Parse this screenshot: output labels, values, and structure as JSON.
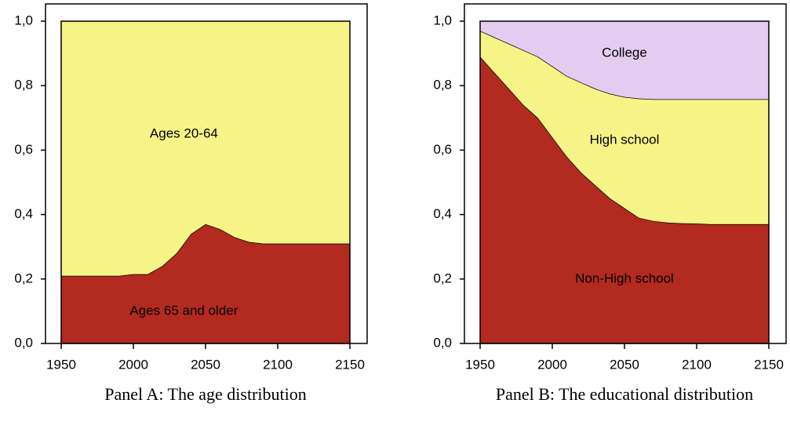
{
  "chart_data": [
    {
      "type": "stacked_area",
      "caption": "Panel A: The age distribution",
      "x": [
        1950,
        1960,
        1970,
        1980,
        1990,
        2000,
        2010,
        2020,
        2030,
        2040,
        2050,
        2060,
        2070,
        2080,
        2090,
        2100,
        2110,
        2120,
        2130,
        2140,
        2150
      ],
      "series": [
        {
          "name": "Ages 65 and older",
          "color": "#b22a20",
          "values": [
            0.21,
            0.21,
            0.21,
            0.21,
            0.21,
            0.215,
            0.215,
            0.24,
            0.28,
            0.34,
            0.37,
            0.355,
            0.33,
            0.315,
            0.31,
            0.31,
            0.31,
            0.31,
            0.31,
            0.31,
            0.31
          ]
        },
        {
          "name": "Ages 20-64",
          "color": "#f7f487",
          "values": [
            0.79,
            0.79,
            0.79,
            0.79,
            0.79,
            0.785,
            0.785,
            0.76,
            0.72,
            0.66,
            0.63,
            0.645,
            0.67,
            0.685,
            0.69,
            0.69,
            0.69,
            0.69,
            0.69,
            0.69,
            0.69
          ]
        }
      ],
      "xlim": [
        1950,
        2150
      ],
      "xticks": [
        1950,
        2000,
        2050,
        2100,
        2150
      ],
      "ylim": [
        0,
        1
      ],
      "yticks": [
        {
          "value": 0,
          "label": "0,0"
        },
        {
          "value": 0.2,
          "label": "0,2"
        },
        {
          "value": 0.4,
          "label": "0,4"
        },
        {
          "value": 0.6,
          "label": "0,6"
        },
        {
          "value": 0.8,
          "label": "0,8"
        },
        {
          "value": 1,
          "label": "1,0"
        }
      ]
    },
    {
      "type": "stacked_area",
      "caption": "Panel B: The educational distribution",
      "x": [
        1950,
        1960,
        1970,
        1980,
        1990,
        2000,
        2010,
        2020,
        2030,
        2040,
        2050,
        2060,
        2070,
        2080,
        2090,
        2100,
        2110,
        2120,
        2130,
        2140,
        2150
      ],
      "series": [
        {
          "name": "Non-High school",
          "color": "#b22a20",
          "values": [
            0.89,
            0.84,
            0.79,
            0.74,
            0.7,
            0.64,
            0.58,
            0.53,
            0.49,
            0.45,
            0.42,
            0.39,
            0.38,
            0.375,
            0.373,
            0.372,
            0.37,
            0.37,
            0.37,
            0.37,
            0.37
          ]
        },
        {
          "name": "High school",
          "color": "#f7f487",
          "values": [
            0.08,
            0.11,
            0.14,
            0.17,
            0.19,
            0.22,
            0.25,
            0.28,
            0.3,
            0.325,
            0.345,
            0.37,
            0.378,
            0.383,
            0.385,
            0.386,
            0.388,
            0.388,
            0.388,
            0.388,
            0.388
          ]
        },
        {
          "name": "College",
          "color": "#e2ccf0",
          "values": [
            0.03,
            0.05,
            0.07,
            0.09,
            0.11,
            0.14,
            0.17,
            0.19,
            0.21,
            0.225,
            0.235,
            0.24,
            0.242,
            0.242,
            0.242,
            0.242,
            0.242,
            0.242,
            0.242,
            0.242,
            0.242
          ]
        }
      ],
      "xlim": [
        1950,
        2150
      ],
      "xticks": [
        1950,
        2000,
        2050,
        2100,
        2150
      ],
      "ylim": [
        0,
        1
      ],
      "yticks": [
        {
          "value": 0,
          "label": "0,0"
        },
        {
          "value": 0.2,
          "label": "0,2"
        },
        {
          "value": 0.4,
          "label": "0,4"
        },
        {
          "value": 0.6,
          "label": "0,6"
        },
        {
          "value": 0.8,
          "label": "0,8"
        },
        {
          "value": 1,
          "label": "1,0"
        }
      ]
    }
  ]
}
